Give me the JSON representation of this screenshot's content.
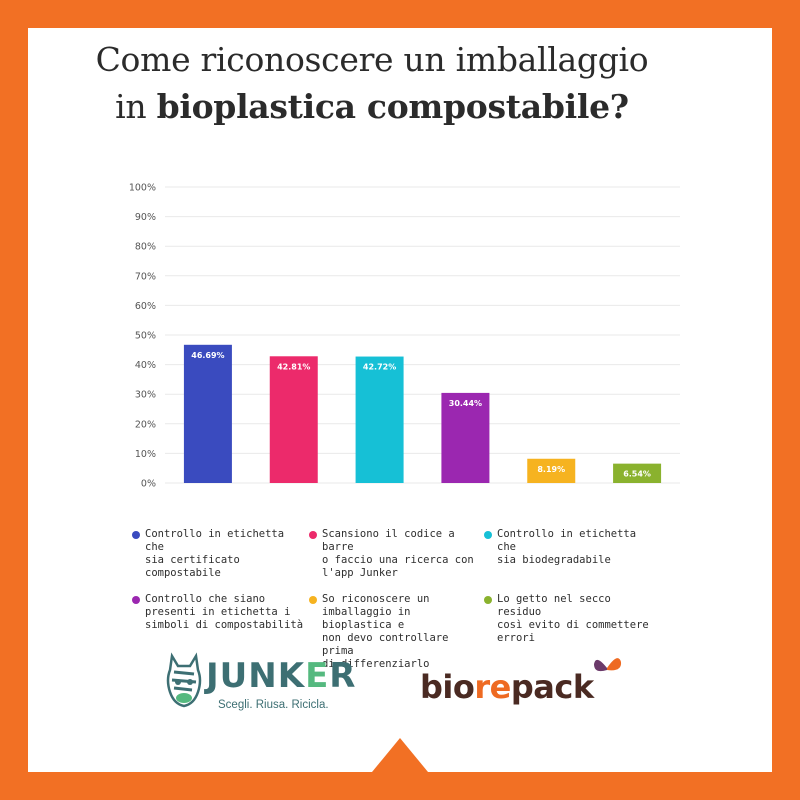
{
  "header": {
    "title_line1": "Come riconoscere un imballaggio",
    "title_line2_prefix": "in ",
    "title_line2_bold": "bioplastica compostabile?"
  },
  "chart_data": {
    "type": "bar",
    "title": "Come riconoscere un imballaggio in bioplastica compostabile?",
    "ylim": [
      0,
      100
    ],
    "yticks": [
      "0%",
      "10%",
      "20%",
      "30%",
      "40%",
      "50%",
      "60%",
      "70%",
      "80%",
      "90%",
      "100%"
    ],
    "grid": true,
    "legend_position": "bottom",
    "series": [
      {
        "name": "Controllo in etichetta che sia certificato compostabile",
        "value": 46.69,
        "label": "46.69%",
        "color": "#3a4bbf"
      },
      {
        "name": "Scansiono il codice a barre o faccio una ricerca con l'app Junker",
        "value": 42.81,
        "label": "42.81%",
        "color": "#ec2a6b"
      },
      {
        "name": "Controllo in etichetta che sia biodegradabile",
        "value": 42.72,
        "label": "42.72%",
        "color": "#16c0d6"
      },
      {
        "name": "Controllo che siano presenti in etichetta i simboli di compostabilità",
        "value": 30.44,
        "label": "30.44%",
        "color": "#9b27b0"
      },
      {
        "name": "So riconoscere un imballaggio in bioplastica e non devo controllare prima di differenziarlo",
        "value": 8.19,
        "label": "8.19%",
        "color": "#f6b320"
      },
      {
        "name": "Lo getto nel secco residuo così evito di commettere errori",
        "value": 6.54,
        "label": "6.54%",
        "color": "#8ab22e"
      }
    ]
  },
  "footer": {
    "junker_name": "JUNKER",
    "junker_tagline": "Scegli. Riusa. Ricicla.",
    "biorepack_prefix": "bio",
    "biorepack_mid": "re",
    "biorepack_suffix": "pack"
  }
}
